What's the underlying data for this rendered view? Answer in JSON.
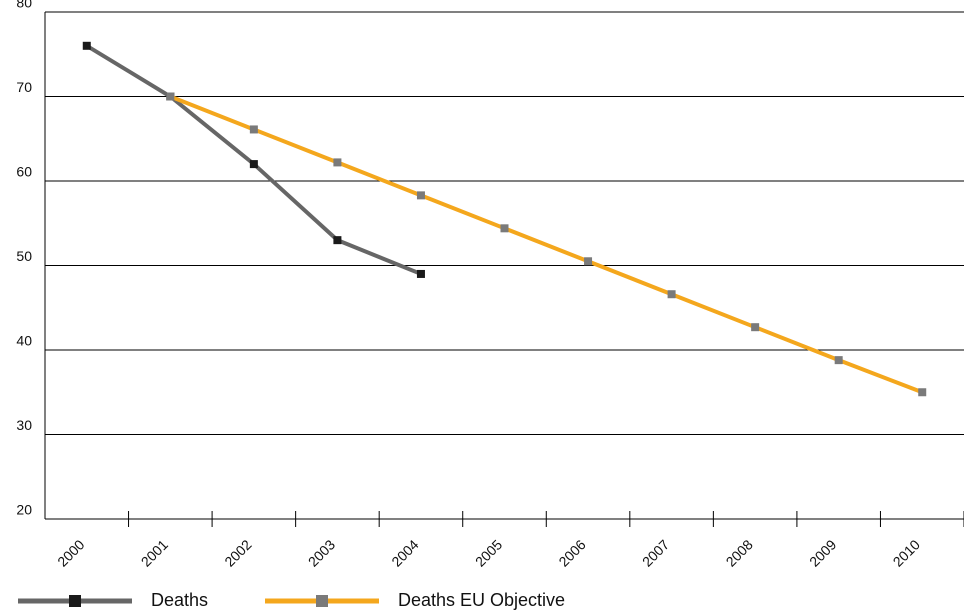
{
  "chart_data": {
    "type": "line",
    "categories": [
      "2000",
      "2001",
      "2002",
      "2003",
      "2004",
      "2005",
      "2006",
      "2007",
      "2008",
      "2009",
      "2010"
    ],
    "series": [
      {
        "name": "Deaths",
        "color": "#666666",
        "marker_color": "#1a1a1a",
        "values": [
          76,
          70,
          62,
          53,
          49,
          null,
          null,
          null,
          null,
          null,
          null
        ]
      },
      {
        "name": "Deaths EU Objective",
        "color": "#f4a71d",
        "marker_color": "#7a7a7a",
        "values": [
          null,
          70,
          66.1,
          62.2,
          58.3,
          54.4,
          50.5,
          46.6,
          42.7,
          38.8,
          35
        ]
      }
    ],
    "ylim": [
      20,
      80
    ],
    "yticks": [
      20,
      30,
      40,
      50,
      60,
      70,
      80
    ],
    "grid": true
  }
}
